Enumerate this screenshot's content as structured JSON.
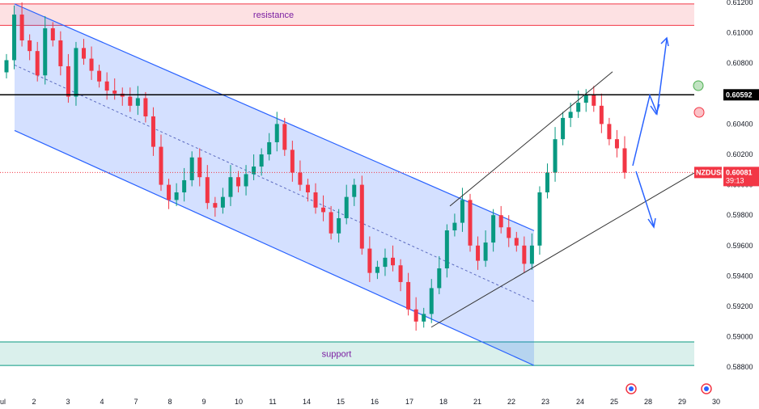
{
  "chart_data": {
    "type": "candlestick",
    "symbol": "NZDUSD",
    "current_price": "0.60081",
    "countdown": "39:13",
    "level_label": "0.60592",
    "level_price": 0.60592,
    "ylim": [
      0.5875,
      0.6122
    ],
    "y_ticks": [
      "0.61200",
      "0.61000",
      "0.60800",
      "0.60400",
      "0.60200",
      "0.60000",
      "0.59800",
      "0.59600",
      "0.59400",
      "0.59200",
      "0.59000",
      "0.58800"
    ],
    "x_ticks": [
      "ul",
      "2",
      "3",
      "4",
      "7",
      "8",
      "9",
      "10",
      "11",
      "14",
      "15",
      "16",
      "17",
      "18",
      "21",
      "22",
      "23",
      "24",
      "25",
      "28",
      "29",
      "30"
    ],
    "zones": [
      {
        "name": "resistance",
        "label": "resistance",
        "from": 0.61049,
        "to": 0.6119,
        "color": "#f23645"
      },
      {
        "name": "support",
        "label": "support",
        "from": 0.58811,
        "to": 0.58966,
        "color": "#089981"
      }
    ],
    "channel": {
      "upper": [
        0.6119,
        0.59698
      ],
      "mid": [
        0.60788,
        0.59232
      ],
      "lower": [
        0.60357,
        0.58811
      ],
      "color": "#2962ff"
    },
    "rising_channel": {
      "upper": [
        0.5986,
        0.60744
      ],
      "lower": [
        0.59063,
        0.60078
      ]
    },
    "projections": [
      "up",
      "down"
    ],
    "markers": [
      {
        "color": "#4caf50"
      },
      {
        "color": "#f23645"
      }
    ],
    "series": [
      {
        "values": [
          0.6082,
          0.6112,
          0.6095,
          0.6088,
          0.6072,
          0.6103,
          0.6095,
          0.6078,
          0.6058,
          0.609,
          0.6083,
          0.6075,
          0.6068,
          0.6062,
          0.606,
          0.6058,
          0.6052,
          0.6057,
          0.6045,
          0.6025,
          0.6,
          0.599,
          0.5995,
          0.6003,
          0.6018,
          0.6005,
          0.5988,
          0.5985,
          0.5992,
          0.6005,
          0.5999,
          0.6007,
          0.6012,
          0.602,
          0.6028,
          0.604,
          0.6023,
          0.6008,
          0.6,
          0.5995,
          0.5985,
          0.5982,
          0.5968,
          0.5978,
          0.5992,
          0.6,
          0.5958,
          0.5942,
          0.5946,
          0.5952,
          0.5947,
          0.5936,
          0.5918,
          0.591,
          0.5915,
          0.5932,
          0.5945,
          0.597,
          0.5975,
          0.599,
          0.596,
          0.595,
          0.5962,
          0.598,
          0.5972,
          0.5965,
          0.596,
          0.5948,
          0.596,
          0.5995,
          0.6008,
          0.603,
          0.6044,
          0.6048,
          0.6054,
          0.6059,
          0.6052,
          0.604,
          0.603,
          0.6024,
          0.6008
        ]
      }
    ]
  }
}
